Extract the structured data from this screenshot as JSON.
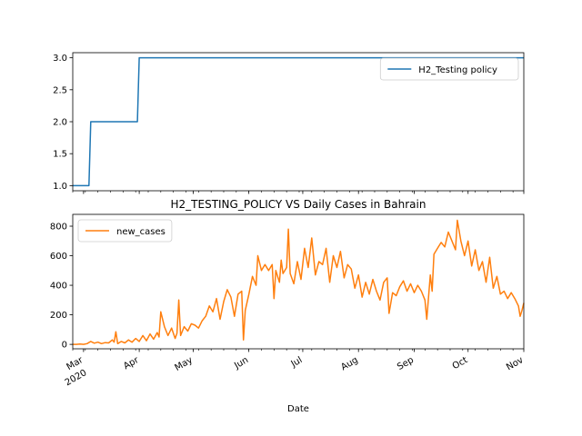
{
  "chart_data": [
    {
      "type": "line",
      "title": "",
      "ylim": [
        0.92,
        3.08
      ],
      "yticks": [
        1.0,
        1.5,
        2.0,
        2.5,
        3.0
      ],
      "yticklabels": [
        "1.0",
        "1.5",
        "2.0",
        "2.5",
        "3.0"
      ],
      "xlim": [
        "2020-02-24",
        "2020-11-01"
      ],
      "grid": false,
      "legend": "upper-right",
      "series": [
        {
          "name": "H2_Testing policy",
          "color": "#1f77b4",
          "step": true,
          "points": [
            [
              "2020-02-24",
              1
            ],
            [
              "2020-03-04",
              1
            ],
            [
              "2020-03-05",
              2
            ],
            [
              "2020-03-31",
              2
            ],
            [
              "2020-04-01",
              3
            ],
            [
              "2020-11-01",
              3
            ]
          ]
        }
      ]
    },
    {
      "type": "line",
      "title": "H2_TESTING_POLICY VS Daily Cases in Bahrain",
      "xlabel": "Date",
      "ylim": [
        -30,
        880
      ],
      "yticks": [
        0,
        200,
        400,
        600,
        800
      ],
      "yticklabels": [
        "0",
        "200",
        "400",
        "600",
        "800"
      ],
      "xlim": [
        "2020-02-24",
        "2020-11-01"
      ],
      "xticks": [
        "2020-03-01",
        "2020-04-01",
        "2020-05-01",
        "2020-06-01",
        "2020-07-01",
        "2020-08-01",
        "2020-09-01",
        "2020-10-01",
        "2020-11-01"
      ],
      "xticklabels": [
        "Mar",
        "Apr",
        "May",
        "Jun",
        "Jul",
        "Aug",
        "Sep",
        "Oct",
        "Nov"
      ],
      "xticklabel_year": "2020",
      "grid": false,
      "legend": "upper-left",
      "series": [
        {
          "name": "new_cases",
          "color": "#ff7f0e",
          "points": [
            [
              "2020-02-24",
              0
            ],
            [
              "2020-02-26",
              0
            ],
            [
              "2020-02-28",
              2
            ],
            [
              "2020-03-01",
              0
            ],
            [
              "2020-03-03",
              5
            ],
            [
              "2020-03-05",
              20
            ],
            [
              "2020-03-07",
              8
            ],
            [
              "2020-03-09",
              15
            ],
            [
              "2020-03-11",
              5
            ],
            [
              "2020-03-13",
              12
            ],
            [
              "2020-03-15",
              10
            ],
            [
              "2020-03-17",
              30
            ],
            [
              "2020-03-18",
              15
            ],
            [
              "2020-03-19",
              85
            ],
            [
              "2020-03-20",
              5
            ],
            [
              "2020-03-22",
              20
            ],
            [
              "2020-03-24",
              10
            ],
            [
              "2020-03-26",
              30
            ],
            [
              "2020-03-28",
              15
            ],
            [
              "2020-03-30",
              40
            ],
            [
              "2020-04-01",
              20
            ],
            [
              "2020-04-03",
              60
            ],
            [
              "2020-04-05",
              25
            ],
            [
              "2020-04-07",
              70
            ],
            [
              "2020-04-09",
              35
            ],
            [
              "2020-04-11",
              80
            ],
            [
              "2020-04-12",
              50
            ],
            [
              "2020-04-13",
              220
            ],
            [
              "2020-04-15",
              120
            ],
            [
              "2020-04-17",
              60
            ],
            [
              "2020-04-19",
              110
            ],
            [
              "2020-04-21",
              40
            ],
            [
              "2020-04-22",
              75
            ],
            [
              "2020-04-23",
              300
            ],
            [
              "2020-04-24",
              60
            ],
            [
              "2020-04-26",
              120
            ],
            [
              "2020-04-28",
              90
            ],
            [
              "2020-04-30",
              140
            ],
            [
              "2020-05-02",
              130
            ],
            [
              "2020-05-04",
              110
            ],
            [
              "2020-05-06",
              160
            ],
            [
              "2020-05-08",
              190
            ],
            [
              "2020-05-10",
              260
            ],
            [
              "2020-05-12",
              220
            ],
            [
              "2020-05-14",
              310
            ],
            [
              "2020-05-16",
              170
            ],
            [
              "2020-05-18",
              290
            ],
            [
              "2020-05-20",
              370
            ],
            [
              "2020-05-22",
              320
            ],
            [
              "2020-05-24",
              190
            ],
            [
              "2020-05-26",
              340
            ],
            [
              "2020-05-28",
              360
            ],
            [
              "2020-05-29",
              30
            ],
            [
              "2020-05-30",
              230
            ],
            [
              "2020-06-01",
              340
            ],
            [
              "2020-06-03",
              460
            ],
            [
              "2020-06-05",
              400
            ],
            [
              "2020-06-06",
              600
            ],
            [
              "2020-06-08",
              500
            ],
            [
              "2020-06-10",
              540
            ],
            [
              "2020-06-12",
              500
            ],
            [
              "2020-06-14",
              540
            ],
            [
              "2020-06-15",
              310
            ],
            [
              "2020-06-16",
              500
            ],
            [
              "2020-06-18",
              420
            ],
            [
              "2020-06-19",
              570
            ],
            [
              "2020-06-20",
              480
            ],
            [
              "2020-06-22",
              520
            ],
            [
              "2020-06-23",
              780
            ],
            [
              "2020-06-24",
              480
            ],
            [
              "2020-06-26",
              410
            ],
            [
              "2020-06-28",
              560
            ],
            [
              "2020-06-30",
              440
            ],
            [
              "2020-07-02",
              650
            ],
            [
              "2020-07-04",
              520
            ],
            [
              "2020-07-06",
              720
            ],
            [
              "2020-07-08",
              470
            ],
            [
              "2020-07-10",
              560
            ],
            [
              "2020-07-12",
              540
            ],
            [
              "2020-07-14",
              650
            ],
            [
              "2020-07-16",
              420
            ],
            [
              "2020-07-18",
              600
            ],
            [
              "2020-07-20",
              520
            ],
            [
              "2020-07-22",
              630
            ],
            [
              "2020-07-24",
              450
            ],
            [
              "2020-07-26",
              540
            ],
            [
              "2020-07-28",
              510
            ],
            [
              "2020-07-30",
              380
            ],
            [
              "2020-08-01",
              470
            ],
            [
              "2020-08-03",
              320
            ],
            [
              "2020-08-05",
              420
            ],
            [
              "2020-08-07",
              340
            ],
            [
              "2020-08-09",
              440
            ],
            [
              "2020-08-11",
              360
            ],
            [
              "2020-08-13",
              300
            ],
            [
              "2020-08-15",
              420
            ],
            [
              "2020-08-17",
              450
            ],
            [
              "2020-08-18",
              210
            ],
            [
              "2020-08-20",
              350
            ],
            [
              "2020-08-22",
              330
            ],
            [
              "2020-08-24",
              390
            ],
            [
              "2020-08-26",
              430
            ],
            [
              "2020-08-28",
              360
            ],
            [
              "2020-08-30",
              410
            ],
            [
              "2020-09-01",
              350
            ],
            [
              "2020-09-03",
              400
            ],
            [
              "2020-09-05",
              360
            ],
            [
              "2020-09-07",
              300
            ],
            [
              "2020-09-08",
              170
            ],
            [
              "2020-09-10",
              470
            ],
            [
              "2020-09-11",
              360
            ],
            [
              "2020-09-12",
              610
            ],
            [
              "2020-09-14",
              650
            ],
            [
              "2020-09-16",
              690
            ],
            [
              "2020-09-18",
              660
            ],
            [
              "2020-09-20",
              760
            ],
            [
              "2020-09-22",
              700
            ],
            [
              "2020-09-24",
              640
            ],
            [
              "2020-09-25",
              840
            ],
            [
              "2020-09-27",
              700
            ],
            [
              "2020-09-29",
              600
            ],
            [
              "2020-10-01",
              700
            ],
            [
              "2020-10-03",
              530
            ],
            [
              "2020-10-05",
              640
            ],
            [
              "2020-10-07",
              500
            ],
            [
              "2020-10-09",
              560
            ],
            [
              "2020-10-11",
              420
            ],
            [
              "2020-10-13",
              590
            ],
            [
              "2020-10-15",
              380
            ],
            [
              "2020-10-17",
              460
            ],
            [
              "2020-10-19",
              340
            ],
            [
              "2020-10-21",
              360
            ],
            [
              "2020-10-23",
              310
            ],
            [
              "2020-10-25",
              350
            ],
            [
              "2020-10-27",
              310
            ],
            [
              "2020-10-29",
              260
            ],
            [
              "2020-10-30",
              190
            ],
            [
              "2020-10-31",
              230
            ],
            [
              "2020-11-01",
              280
            ]
          ]
        }
      ]
    }
  ]
}
